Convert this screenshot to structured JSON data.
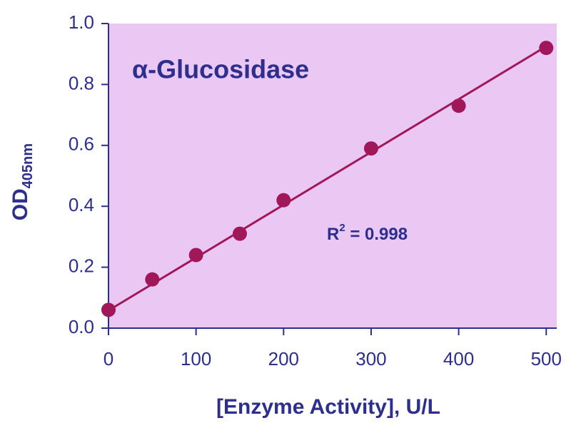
{
  "chart_data": {
    "type": "scatter",
    "title": "α-Glucosidase",
    "x_label": "[Enzyme Activity], U/L",
    "y_label": "OD",
    "y_label_subscript": "405nm",
    "annotation": {
      "text": "R",
      "superscript": "2",
      "suffix": " = 0.998"
    },
    "x": [
      0,
      50,
      100,
      150,
      200,
      300,
      400,
      500
    ],
    "values": [
      0.06,
      0.16,
      0.24,
      0.31,
      0.42,
      0.59,
      0.73,
      0.92
    ],
    "color": "#a0185a",
    "fit_line": {
      "x": [
        0,
        500
      ],
      "y": [
        0.058,
        0.925
      ]
    },
    "xlim": [
      0,
      512
    ],
    "ylim": [
      0,
      1
    ],
    "xticks": [
      0,
      100,
      200,
      300,
      400,
      500
    ],
    "yticks": [
      {
        "value": 0,
        "label": "0.0"
      },
      {
        "value": 0.2,
        "label": "0.2"
      },
      {
        "value": 0.4,
        "label": "0.4"
      },
      {
        "value": 0.6,
        "label": "0.6"
      },
      {
        "value": 0.8,
        "label": "0.8"
      },
      {
        "value": 1,
        "label": "1.0"
      }
    ],
    "plot_background": "#ebc8f3"
  }
}
